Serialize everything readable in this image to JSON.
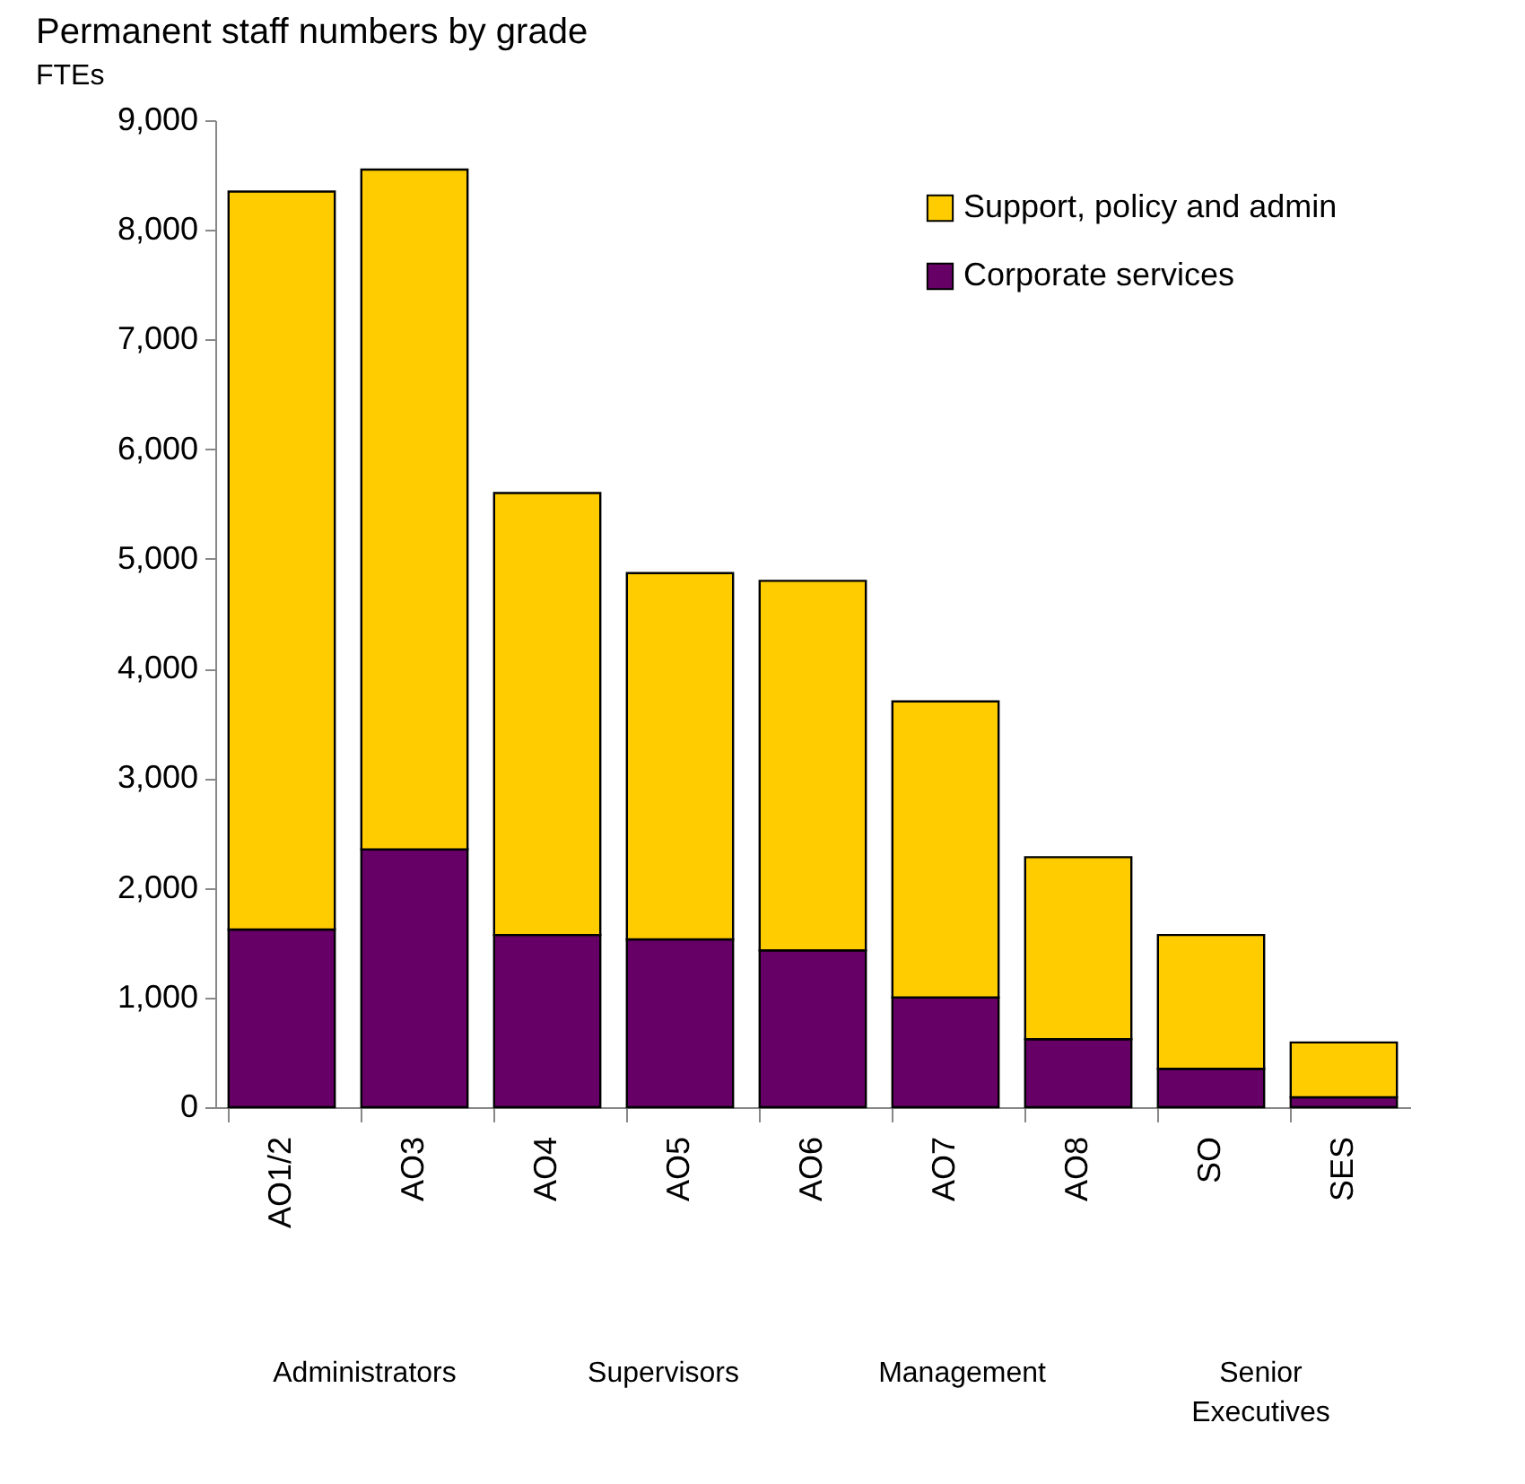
{
  "chart_data": {
    "type": "bar",
    "title": "Permanent staff numbers by grade",
    "ylabel": "FTEs",
    "categories": [
      "AO1/2",
      "AO3",
      "AO4",
      "AO5",
      "AO6",
      "AO7",
      "AO8",
      "SO",
      "SES"
    ],
    "stacked": true,
    "series": [
      {
        "name": "Corporate services",
        "color": "#660066",
        "values": [
          1620,
          2350,
          1570,
          1530,
          1430,
          1000,
          620,
          350,
          90
        ]
      },
      {
        "name": "Support, policy and admin",
        "color": "#ffcc00",
        "values": [
          6730,
          6200,
          4030,
          3340,
          3370,
          2700,
          1660,
          1220,
          500
        ]
      }
    ],
    "ylim": [
      0,
      9000
    ],
    "yticks": [
      0,
      {
        "value": 1000,
        "label": "1,000"
      },
      {
        "value": 2000,
        "label": "2,000"
      },
      {
        "value": 3000,
        "label": "3,000"
      },
      {
        "value": 4000,
        "label": "4,000"
      },
      {
        "value": 5000,
        "label": "5,000"
      },
      {
        "value": 6000,
        "label": "6,000"
      },
      {
        "value": 7000,
        "label": "7,000"
      },
      {
        "value": 8000,
        "label": "8,000"
      },
      {
        "value": 9000,
        "label": "9,000"
      }
    ],
    "grid": false,
    "legend": "top right",
    "annotations": [
      "Administrators",
      "Supervisors",
      "Management",
      "Senior Executives"
    ]
  }
}
